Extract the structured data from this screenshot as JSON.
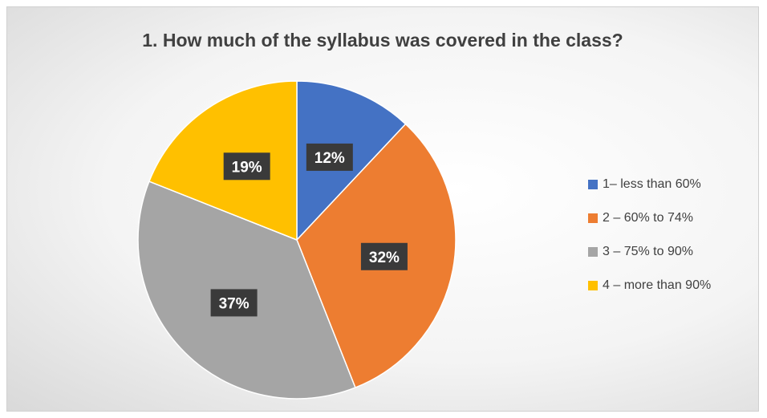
{
  "chart_data": {
    "type": "pie",
    "title": "1. How much of the syllabus was covered in the class?",
    "categories": [
      "1– less than 60%",
      "2 – 60% to 74%",
      "3 – 75% to 90%",
      "4 – more than 90%"
    ],
    "values": [
      12,
      32,
      37,
      19
    ],
    "data_labels": [
      "12%",
      "32%",
      "37%",
      "19%"
    ],
    "colors": [
      "#4472C4",
      "#ED7D31",
      "#A5A5A5",
      "#FFC000"
    ],
    "legend_position": "right",
    "start_angle": "12 o'clock, clockwise"
  }
}
